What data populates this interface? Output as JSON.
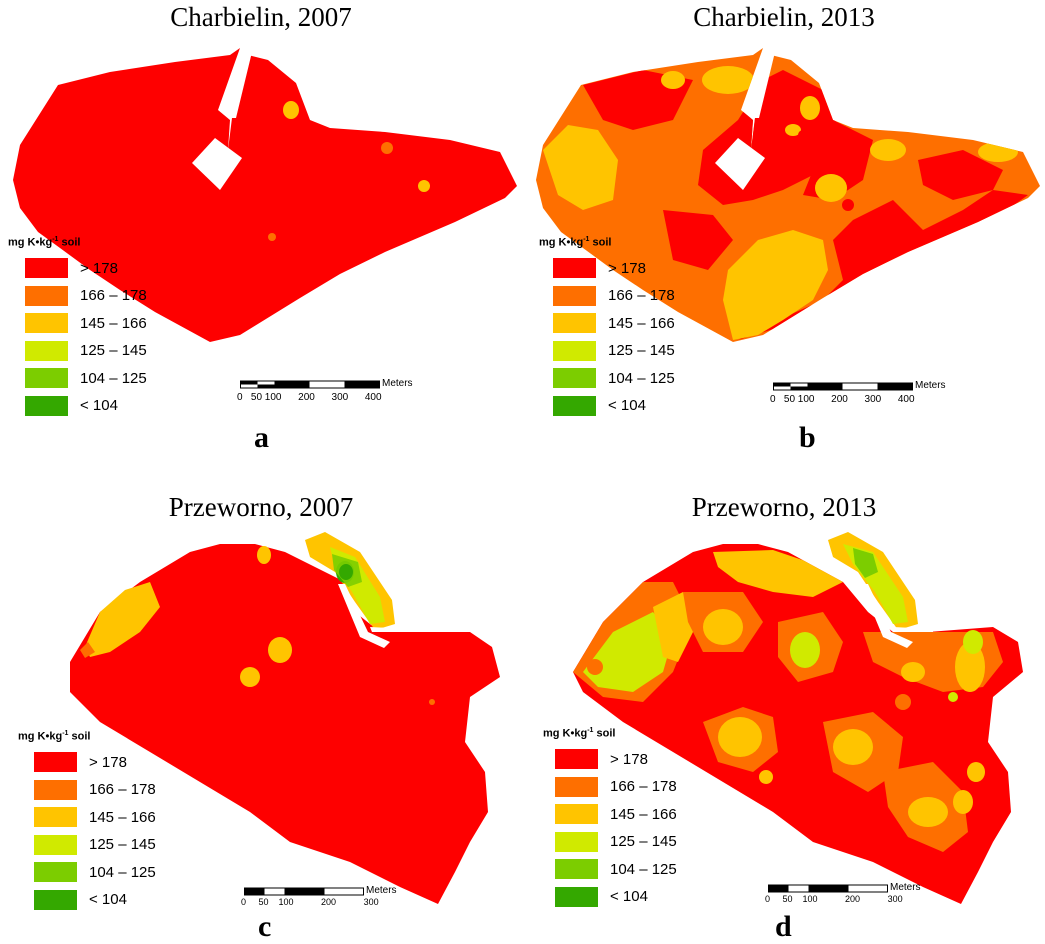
{
  "legend": {
    "title_prefix": "mg K•kg",
    "title_exp": "-1",
    "title_suffix": " soil",
    "classes": [
      {
        "label": "> 178",
        "color": "#fe0000"
      },
      {
        "label": "166 – 178",
        "color": "#fe6f00"
      },
      {
        "label": "145 – 166",
        "color": "#ffc400"
      },
      {
        "label": "125 – 145",
        "color": "#d0ea00"
      },
      {
        "label": "104 – 125",
        "color": "#7ccd00"
      },
      {
        "label": "< 104",
        "color": "#34a800"
      }
    ]
  },
  "panels": [
    {
      "title": "Charbielin, 2007",
      "letter": "a",
      "scale_ticks": "0   50 100      200      300      400",
      "scale_unit": "Meters"
    },
    {
      "title": "Charbielin, 2013",
      "letter": "b",
      "scale_ticks": "0   50 100      200      300      400",
      "scale_unit": "Meters"
    },
    {
      "title": "Przeworno, 2007",
      "letter": "c",
      "scale_ticks": "0     50    100           200           300",
      "scale_unit": "Meters"
    },
    {
      "title": "Przeworno, 2013",
      "letter": "d",
      "scale_ticks": "0     50    100           200           300",
      "scale_unit": "Meters"
    }
  ]
}
